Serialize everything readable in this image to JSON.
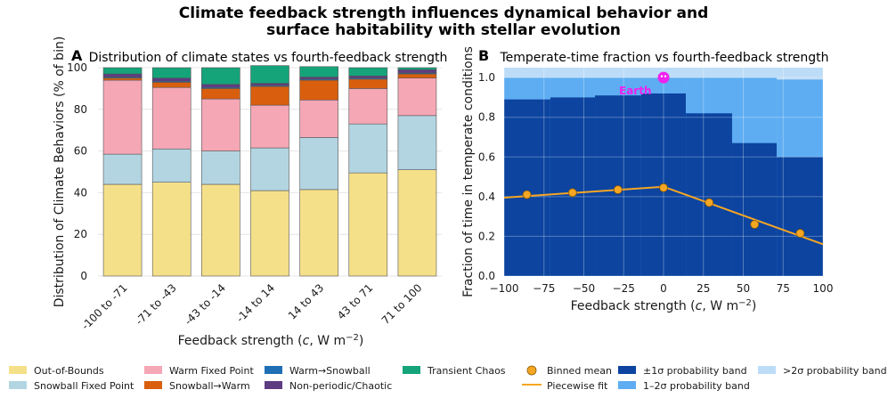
{
  "figure": {
    "title_line1": "Climate feedback strength influences dynamical behavior and",
    "title_line2": "surface habitability with stellar evolution"
  },
  "colors": {
    "out_of_bounds": "#f5e08a",
    "snowball_fixed": "#b3d5e2",
    "warm_fixed": "#f5a7b5",
    "snowball_warm": "#d95f0e",
    "warm_snowball": "#1f6fb5",
    "nonperiodic": "#5e3c82",
    "transient": "#15a47a",
    "band_1sigma": "#0c44a0",
    "band_2sigma": "#5eadf2",
    "band_gt2sigma": "#bddcf7",
    "binned_mean": "#f5a623",
    "fit_line": "#f5a623",
    "earth": "#ee22ee"
  },
  "chart_data": [
    {
      "id": "A",
      "type": "bar",
      "stacked": true,
      "panel_letter": "A",
      "title": "Distribution of climate states vs fourth-feedback strength",
      "xlabel": "Feedback strength (c, W m⁻²)",
      "ylabel": "Distribution of Climate Behaviors (% of bin)",
      "ylim": [
        0,
        100
      ],
      "yticks": [
        0,
        20,
        40,
        60,
        80,
        100
      ],
      "grid": true,
      "categories": [
        "-100 to -71",
        "-71 to -43",
        "-43 to -14",
        "-14 to 14",
        "14 to 43",
        "43 to 71",
        "71 to 100"
      ],
      "series": [
        {
          "key": "out_of_bounds",
          "name": "Out-of-Bounds",
          "values": [
            44,
            45,
            44,
            41,
            41.5,
            49.5,
            51
          ]
        },
        {
          "key": "snowball_fixed",
          "name": "Snowball Fixed Point",
          "values": [
            14.5,
            16,
            16,
            20.5,
            25,
            23.5,
            26
          ]
        },
        {
          "key": "warm_fixed",
          "name": "Warm Fixed Point",
          "values": [
            35.5,
            29.5,
            25,
            20.5,
            18,
            17,
            18
          ]
        },
        {
          "key": "snowball_warm",
          "name": "Snowball→Warm",
          "values": [
            1,
            2.5,
            5,
            9,
            9.5,
            4.5,
            2
          ]
        },
        {
          "key": "warm_snowball",
          "name": "Warm→Snowball",
          "values": [
            0.5,
            0.5,
            0.5,
            0.5,
            0.5,
            0.5,
            0.5
          ]
        },
        {
          "key": "nonperiodic",
          "name": "Non-periodic/Chaotic",
          "values": [
            1.5,
            1.5,
            1.5,
            1,
            1,
            1,
            1.5
          ]
        },
        {
          "key": "transient",
          "name": "Transient Chaos",
          "values": [
            3,
            5,
            8,
            8.5,
            5,
            4,
            1
          ]
        }
      ]
    },
    {
      "id": "B",
      "type": "area",
      "panel_letter": "B",
      "title": "Temperate-time fraction vs fourth-feedback strength",
      "xlabel": "Feedback strength (c, W m⁻²)",
      "ylabel": "Fraction of time in temperate conditions",
      "xlim": [
        -100,
        100
      ],
      "ylim": [
        0,
        1.05
      ],
      "xticks": [
        -100,
        -75,
        -50,
        -25,
        0,
        25,
        50,
        75,
        100
      ],
      "xtick_labels": [
        "−100",
        "−75",
        "−50",
        "−25",
        "0",
        "25",
        "50",
        "75",
        "100"
      ],
      "yticks": [
        0,
        0.2,
        0.4,
        0.6,
        0.8,
        1.0
      ],
      "ytick_labels": [
        "0.0",
        "0.2",
        "0.4",
        "0.6",
        "0.8",
        "1.0"
      ],
      "grid": true,
      "bin_edges": [
        -100,
        -71,
        -43,
        -14,
        14,
        43,
        71,
        100
      ],
      "band_1sigma_upper": [
        0.89,
        0.9,
        0.91,
        0.92,
        0.82,
        0.67,
        0.6
      ],
      "band_2sigma_upper": [
        1.0,
        1.0,
        1.0,
        1.0,
        1.0,
        1.0,
        0.99
      ],
      "binned_mean": {
        "name": "Binned mean",
        "x": [
          -85.7,
          -57.1,
          -28.6,
          0,
          28.6,
          57.1,
          85.7
        ],
        "y": [
          0.41,
          0.42,
          0.435,
          0.445,
          0.37,
          0.26,
          0.215
        ]
      },
      "piecewise_fit": {
        "name": "Piecewise fit",
        "x": [
          -100,
          0,
          100
        ],
        "y": [
          0.395,
          0.45,
          0.16
        ]
      },
      "earth": {
        "label": "Earth",
        "x": 0,
        "y": 1.0
      }
    }
  ],
  "legend": {
    "col1": [
      "Out-of-Bounds",
      "Snowball Fixed Point"
    ],
    "col2": [
      "Warm Fixed Point",
      "Snowball→Warm"
    ],
    "col3": [
      "Warm→Snowball",
      "Non-periodic/Chaotic"
    ],
    "col4": [
      "Transient Chaos"
    ],
    "col5": [
      "Binned mean",
      "Piecewise fit"
    ],
    "col6": [
      "±1σ probability band",
      "1–2σ probability band"
    ],
    "col7": [
      ">2σ probability band"
    ]
  }
}
